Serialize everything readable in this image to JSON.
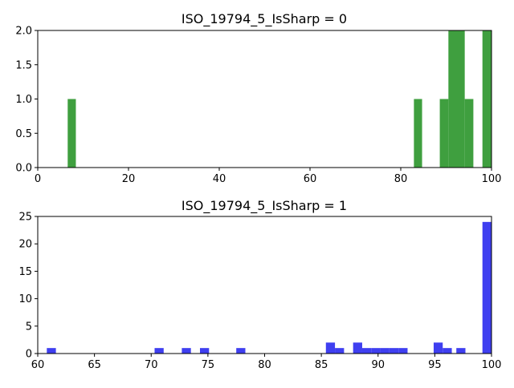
{
  "chart_data": [
    {
      "type": "bar",
      "title": "ISO_19794_5_IsSharp = 0",
      "xlabel": "",
      "ylabel": "",
      "xlim": [
        0,
        100
      ],
      "ylim": [
        0,
        2.0
      ],
      "xticks": [
        "0",
        "20",
        "40",
        "60",
        "80",
        "100"
      ],
      "yticks": [
        "0.0",
        "0.5",
        "1.0",
        "1.5",
        "2.0"
      ],
      "color": "#3f9f3f",
      "grid": false,
      "bars": [
        {
          "x0": 6.6,
          "x1": 8.4,
          "value": 1
        },
        {
          "x0": 82.9,
          "x1": 84.7,
          "value": 1
        },
        {
          "x0": 88.6,
          "x1": 90.5,
          "value": 1
        },
        {
          "x0": 90.5,
          "x1": 92.3,
          "value": 2
        },
        {
          "x0": 92.3,
          "x1": 94.1,
          "value": 2
        },
        {
          "x0": 94.1,
          "x1": 96.0,
          "value": 1
        },
        {
          "x0": 98.0,
          "x1": 100.0,
          "value": 2
        }
      ]
    },
    {
      "type": "bar",
      "title": "ISO_19794_5_IsSharp = 1",
      "xlabel": "",
      "ylabel": "",
      "xlim": [
        60,
        100
      ],
      "ylim": [
        0,
        25
      ],
      "xticks": [
        "60",
        "65",
        "70",
        "75",
        "80",
        "85",
        "90",
        "95",
        "100"
      ],
      "yticks": [
        "0",
        "5",
        "10",
        "15",
        "20",
        "25"
      ],
      "color": "#3f3ff0",
      "grid": false,
      "bars": [
        {
          "x0": 60.8,
          "x1": 61.6,
          "value": 1
        },
        {
          "x0": 70.3,
          "x1": 71.1,
          "value": 1
        },
        {
          "x0": 72.7,
          "x1": 73.5,
          "value": 1
        },
        {
          "x0": 74.3,
          "x1": 75.1,
          "value": 1
        },
        {
          "x0": 77.5,
          "x1": 78.3,
          "value": 1
        },
        {
          "x0": 85.4,
          "x1": 86.2,
          "value": 2
        },
        {
          "x0": 86.2,
          "x1": 87.0,
          "value": 1
        },
        {
          "x0": 87.8,
          "x1": 88.6,
          "value": 2
        },
        {
          "x0": 88.6,
          "x1": 89.4,
          "value": 1
        },
        {
          "x0": 89.4,
          "x1": 90.2,
          "value": 1
        },
        {
          "x0": 90.2,
          "x1": 91.0,
          "value": 1
        },
        {
          "x0": 91.0,
          "x1": 91.8,
          "value": 1
        },
        {
          "x0": 91.8,
          "x1": 92.6,
          "value": 1
        },
        {
          "x0": 94.9,
          "x1": 95.7,
          "value": 2
        },
        {
          "x0": 95.7,
          "x1": 96.5,
          "value": 1
        },
        {
          "x0": 96.9,
          "x1": 97.7,
          "value": 1
        },
        {
          "x0": 99.2,
          "x1": 100.0,
          "value": 24
        }
      ]
    }
  ]
}
